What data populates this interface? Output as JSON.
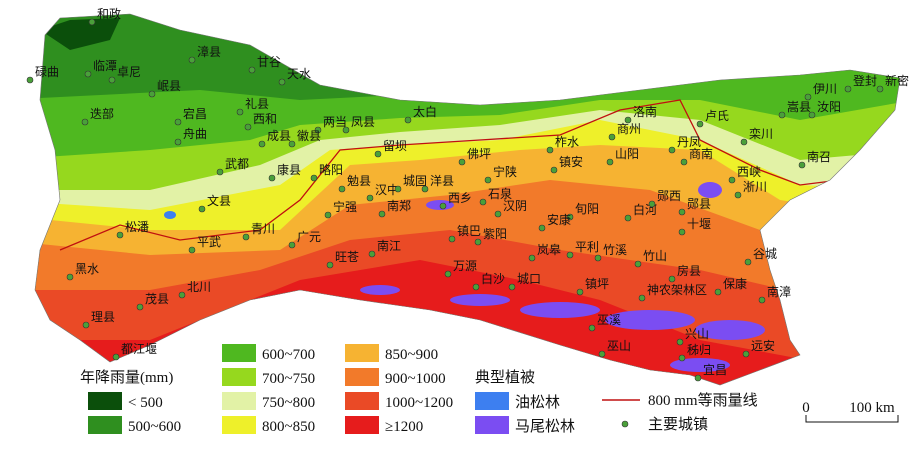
{
  "map": {
    "cities": [
      "和政",
      "漳县",
      "甘谷",
      "天水",
      "碌曲",
      "临潭",
      "卓尼",
      "岷县",
      "迭部",
      "宕昌",
      "礼县",
      "西和",
      "两当",
      "凤县",
      "太白",
      "舟曲",
      "成县",
      "徽县",
      "留坝",
      "佛坪",
      "柞水",
      "洛南",
      "卢氏",
      "伊川",
      "登封",
      "新密",
      "嵩县",
      "汝阳",
      "商州",
      "丹凤",
      "栾川",
      "山阳",
      "商南",
      "南召",
      "西峡",
      "淅川",
      "镇安",
      "宁陕",
      "武都",
      "康县",
      "略阳",
      "文县",
      "勉县",
      "汉中",
      "城固",
      "洋县",
      "石泉",
      "西乡",
      "汉阴",
      "宁强",
      "南郑",
      "旬阳",
      "白河",
      "郧西",
      "郧县",
      "十堰",
      "安康",
      "紫阳",
      "镇巴",
      "岚皋",
      "平利",
      "竹溪",
      "竹山",
      "谷城",
      "房县",
      "保康",
      "南漳",
      "神农架林区",
      "镇坪",
      "城口",
      "万源",
      "白沙",
      "旺苍",
      "南江",
      "广元",
      "青川",
      "平武",
      "松潘",
      "黑水",
      "茂县",
      "北川",
      "理县",
      "都江堰",
      "巫溪",
      "巫山",
      "兴山",
      "秭归",
      "远安",
      "宜昌"
    ]
  },
  "legend": {
    "rainfall_title": "年降雨量(mm)",
    "rainfall": [
      {
        "label": "< 500",
        "color": "#0b4f0b"
      },
      {
        "label": "500~600",
        "color": "#2f8f1f"
      },
      {
        "label": "600~700",
        "color": "#4fb820"
      },
      {
        "label": "700~750",
        "color": "#96d81e"
      },
      {
        "label": "750~800",
        "color": "#e2f2a6"
      },
      {
        "label": "800~850",
        "color": "#eef02a"
      },
      {
        "label": "850~900",
        "color": "#f6b332"
      },
      {
        "label": "900~1000",
        "color": "#f27a2a"
      },
      {
        "label": "1000~1200",
        "color": "#ea4a26"
      },
      {
        "label": "≥1200",
        "color": "#e61c1c"
      }
    ],
    "vegetation_title": "典型植被",
    "vegetation": [
      {
        "label": "油松林",
        "color": "#3d7ff0"
      },
      {
        "label": "马尾松林",
        "color": "#7b4df2"
      }
    ],
    "isohyet": {
      "label": "800 mm等雨量线",
      "color": "#c01010"
    },
    "towns": {
      "label": "主要城镇",
      "color": "#4aa03a"
    }
  },
  "scale": {
    "labels": [
      "0",
      "100 km"
    ]
  }
}
